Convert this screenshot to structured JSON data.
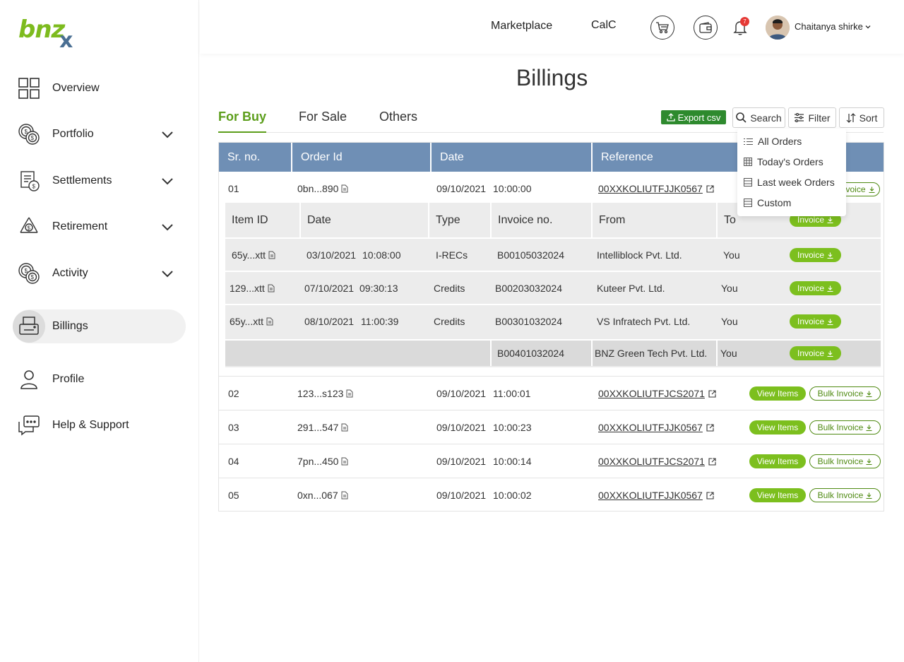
{
  "brand": {
    "logo_main": "bnz",
    "logo_accent": "x"
  },
  "sidebar": {
    "items": [
      {
        "label": "Overview",
        "icon": "grid-icon"
      },
      {
        "label": "Portfolio",
        "icon": "coins-icon"
      },
      {
        "label": "Settlements",
        "icon": "settlements-icon"
      },
      {
        "label": "Retirement",
        "icon": "recycle-icon"
      },
      {
        "label": "Activity",
        "icon": "coins-icon"
      },
      {
        "label": "Billings",
        "icon": "printer-icon"
      },
      {
        "label": "Profile",
        "icon": "user-icon"
      },
      {
        "label": "Help & Support",
        "icon": "chat-icon"
      }
    ]
  },
  "topbar": {
    "marketplace": "Marketplace",
    "calc": "CalC",
    "notifications_count": "7",
    "user_name": "Chaitanya shirke"
  },
  "page": {
    "title": "Billings"
  },
  "tabs": [
    {
      "label": "For Buy"
    },
    {
      "label": "For Sale"
    },
    {
      "label": "Others"
    }
  ],
  "toolbar": {
    "export": "Export csv",
    "search": "Search",
    "filter": "Filter",
    "sort": "Sort"
  },
  "dropdown": {
    "items": [
      "All Orders",
      "Today's Orders",
      "Last week Orders",
      "Custom"
    ]
  },
  "table": {
    "headers": [
      "Sr. no.",
      "Order Id",
      "Date",
      "Reference"
    ],
    "rows": [
      {
        "sr": "01",
        "order": "0bn...890",
        "date": "09/10/2021",
        "time": "10:00:00",
        "ref": "00XXKOLIUTFJJK0567"
      },
      {
        "sr": "02",
        "order": "123...s123",
        "date": "09/10/2021",
        "time": "11:00:01",
        "ref": "00XXKOLIUTFJCS2071"
      },
      {
        "sr": "03",
        "order": "291...547",
        "date": "09/10/2021",
        "time": "10:00:23",
        "ref": "00XXKOLIUTFJJK0567"
      },
      {
        "sr": "04",
        "order": "7pn...450",
        "date": "09/10/2021",
        "time": "10:00:14",
        "ref": "00XXKOLIUTFJCS2071"
      },
      {
        "sr": "05",
        "order": "0xn...067",
        "date": "09/10/2021",
        "time": "10:00:02",
        "ref": "00XXKOLIUTFJJK0567"
      }
    ],
    "view_items": "View Items",
    "bulk_invoice": "Bulk Invoice",
    "row1_partial_btn": "Invoice"
  },
  "subtable": {
    "headers": [
      "Item ID",
      "Date",
      "Type",
      "Invoice no.",
      "From",
      "To"
    ],
    "header_btn": "Invoice",
    "rows": [
      {
        "item": "65y...xtt",
        "date": "03/10/2021",
        "time": "10:08:00",
        "type": "I-RECs",
        "invoice": "B00105032024",
        "from": "Intelliblock Pvt. Ltd.",
        "to": "You"
      },
      {
        "item": "129...xtt",
        "date": "07/10/2021",
        "time": "09:30:13",
        "type": "Credits",
        "invoice": "B00203032024",
        "from": "Kuteer Pvt. Ltd.",
        "to": "You"
      },
      {
        "item": "65y...xtt",
        "date": "08/10/2021",
        "time": "11:00:39",
        "type": "Credits",
        "invoice": "B00301032024",
        "from": "VS Infratech Pvt. Ltd.",
        "to": "You"
      },
      {
        "item": "",
        "date": "",
        "time": "",
        "type": "",
        "invoice": "B00401032024",
        "from": "BNZ Green Tech Pvt. Ltd.",
        "to": "You"
      }
    ],
    "invoice_btn": "Invoice"
  },
  "colors": {
    "accent_green": "#5c9e1b",
    "pill_green": "#7cbf1e",
    "header_blue": "#6f8fb5",
    "export_green": "#2e8a2e"
  }
}
